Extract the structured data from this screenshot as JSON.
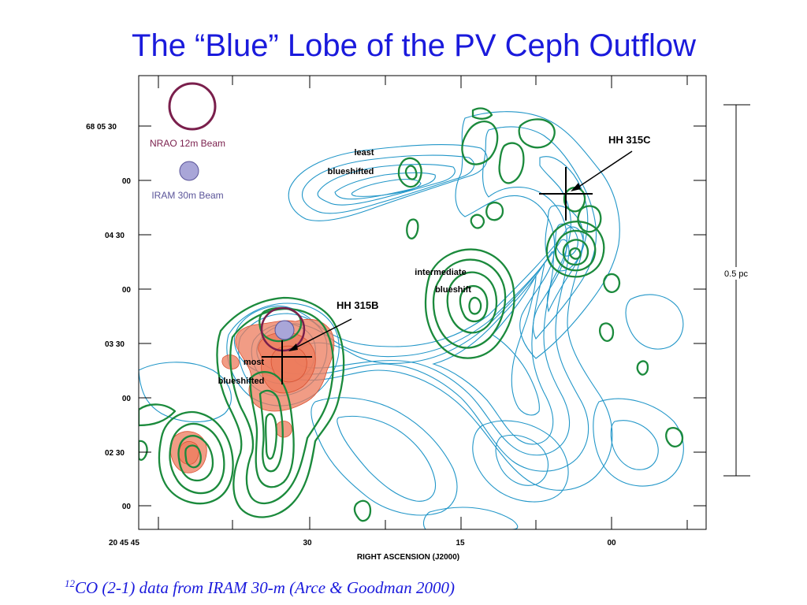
{
  "title": "The “Blue” Lobe of the PV Ceph Outflow",
  "figure": {
    "dec_tick_labels": [
      "68 05 30",
      "00",
      "04 30",
      "00",
      "03 30",
      "00",
      "02 30",
      "00"
    ],
    "ra_tick_labels": [
      "20 45 45",
      "30",
      "15",
      "00"
    ],
    "xlabel": "RIGHT ASCENSION (J2000)",
    "beams": {
      "nrao": {
        "label": "NRAO 12m Beam",
        "color": "#7a1f4c"
      },
      "iram": {
        "label": "IRAM 30m Beam",
        "color": "#5a5499",
        "fill": "#a9a6d8"
      }
    },
    "annotations": {
      "least_line1": "least",
      "least_line2": "blueshifted",
      "intermediate_line1": "intermediate",
      "intermediate_line2": "blueshift",
      "most_line1": "most",
      "most_line2": "blueshifted",
      "hh315b": "HH 315B",
      "hh315c": "HH 315C"
    },
    "scale_bar": {
      "label": "0.5 pc"
    },
    "contour_colors": {
      "blue": "#2196c8",
      "green": "#1b8a3c",
      "red": "#ec7b5c"
    }
  },
  "caption": {
    "superscript": "12",
    "text": "CO (2-1) data from IRAM 30-m (Arce & Goodman 2000)"
  }
}
